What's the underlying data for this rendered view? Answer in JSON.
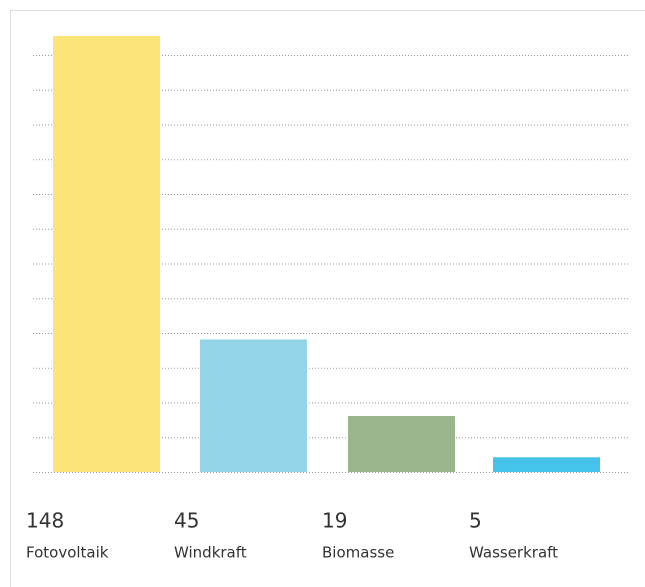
{
  "chart_data": {
    "type": "bar",
    "categories": [
      "Fotovoltaik",
      "Windkraft",
      "Biomasse",
      "Wasserkraft"
    ],
    "values": [
      148,
      45,
      19,
      5
    ],
    "colors": [
      "#fde47a",
      "#93d4e8",
      "#9ab68a",
      "#45c3ea"
    ],
    "ylim": [
      0,
      148
    ]
  }
}
